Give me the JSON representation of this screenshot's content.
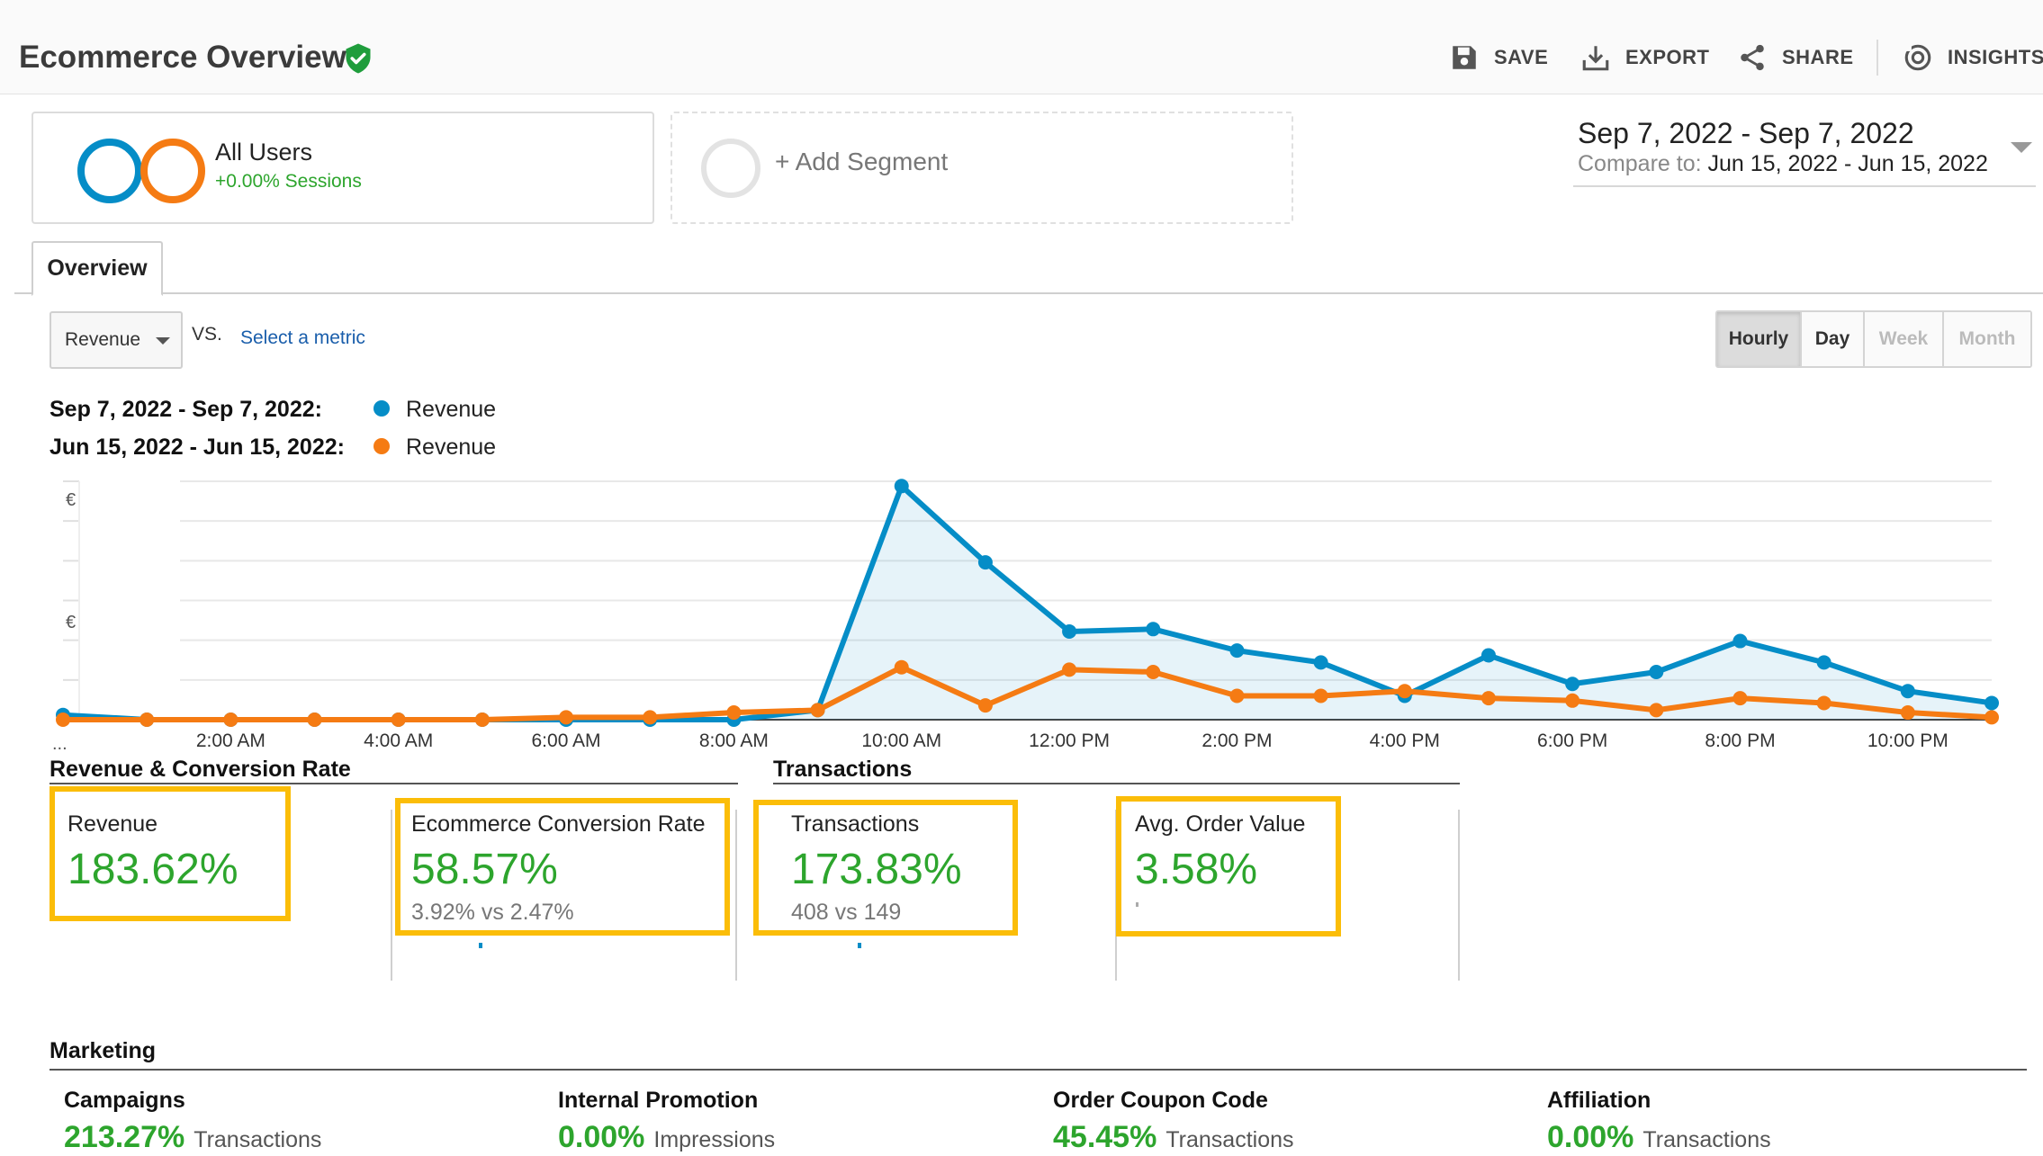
{
  "header": {
    "title": "Ecommerce Overview",
    "actions": [
      {
        "label": "SAVE",
        "icon": "save-icon"
      },
      {
        "label": "EXPORT",
        "icon": "export-icon"
      },
      {
        "label": "SHARE",
        "icon": "share-icon"
      },
      {
        "label": "INSIGHTS",
        "icon": "insights-icon"
      }
    ]
  },
  "segments": {
    "all_users": {
      "name": "All Users",
      "sessions": "+0.00% Sessions"
    },
    "add_label": "+ Add Segment"
  },
  "date": {
    "range": "Sep 7, 2022 - Sep 7, 2022",
    "compare_prefix": "Compare to:",
    "compare_range": "Jun 15, 2022 - Jun 15, 2022"
  },
  "tabs": [
    {
      "label": "Overview",
      "active": true
    }
  ],
  "controls": {
    "metric": "Revenue",
    "vs": "VS.",
    "select_metric": "Select a metric",
    "granularity": [
      {
        "label": "Hourly",
        "state": "active"
      },
      {
        "label": "Day",
        "state": "enabled"
      },
      {
        "label": "Week",
        "state": "disabled"
      },
      {
        "label": "Month",
        "state": "disabled"
      }
    ]
  },
  "legend": [
    {
      "date": "Sep 7, 2022 - Sep 7, 2022:",
      "series": "Revenue",
      "color": "#058dc7"
    },
    {
      "date": "Jun 15, 2022 - Jun 15, 2022:",
      "series": "Revenue",
      "color": "#f57b13"
    }
  ],
  "chart_data": {
    "type": "line",
    "x": [
      "12:00 AM",
      "1:00 AM",
      "2:00 AM",
      "3:00 AM",
      "4:00 AM",
      "5:00 AM",
      "6:00 AM",
      "7:00 AM",
      "8:00 AM",
      "9:00 AM",
      "10:00 AM",
      "11:00 AM",
      "12:00 PM",
      "1:00 PM",
      "2:00 PM",
      "3:00 PM",
      "4:00 PM",
      "5:00 PM",
      "6:00 PM",
      "7:00 PM",
      "8:00 PM",
      "9:00 PM",
      "10:00 PM",
      "11:00 PM"
    ],
    "tick_labels": [
      "2:00 AM",
      "4:00 AM",
      "6:00 AM",
      "8:00 AM",
      "10:00 AM",
      "12:00 PM",
      "2:00 PM",
      "4:00 PM",
      "6:00 PM",
      "8:00 PM",
      "10:00 PM"
    ],
    "first_tick_label": "...",
    "y_tick_labels": [
      "€",
      "€"
    ],
    "ylim": [
      0,
      100
    ],
    "series": [
      {
        "values": [
          2,
          0,
          0,
          0,
          0,
          0,
          0,
          0,
          0,
          4,
          98,
          66,
          37,
          38,
          29,
          24,
          10,
          27,
          15,
          20,
          33,
          24,
          12,
          7
        ],
        "color": "#058dc7",
        "fill": true
      },
      {
        "values": [
          0,
          0,
          0,
          0,
          0,
          0,
          1,
          1,
          3,
          4,
          22,
          6,
          21,
          20,
          10,
          10,
          12,
          9,
          8,
          4,
          9,
          7,
          3,
          1
        ],
        "color": "#f57b13",
        "fill": false
      }
    ],
    "grid": true
  },
  "sections": {
    "revenue": "Revenue & Conversion Rate",
    "transactions": "Transactions",
    "marketing": "Marketing"
  },
  "cards": [
    {
      "label": "Revenue",
      "value": "183.62%",
      "sub": ""
    },
    {
      "label": "Ecommerce Conversion Rate",
      "value": "58.57%",
      "sub": "3.92% vs 2.47%"
    },
    {
      "label": "Transactions",
      "value": "173.83%",
      "sub": "408 vs 149"
    },
    {
      "label": "Avg. Order Value",
      "value": "3.58%",
      "sub": ""
    }
  ],
  "marketing": [
    {
      "label": "Campaigns",
      "value": "213.27%",
      "unit": "Transactions"
    },
    {
      "label": "Internal Promotion",
      "value": "0.00%",
      "unit": "Impressions"
    },
    {
      "label": "Order Coupon Code",
      "value": "45.45%",
      "unit": "Transactions"
    },
    {
      "label": "Affiliation",
      "value": "0.00%",
      "unit": "Transactions"
    }
  ],
  "colors": {
    "accent_green": "#2da52d",
    "highlight": "#fbbd08",
    "link": "#1a5eab"
  }
}
